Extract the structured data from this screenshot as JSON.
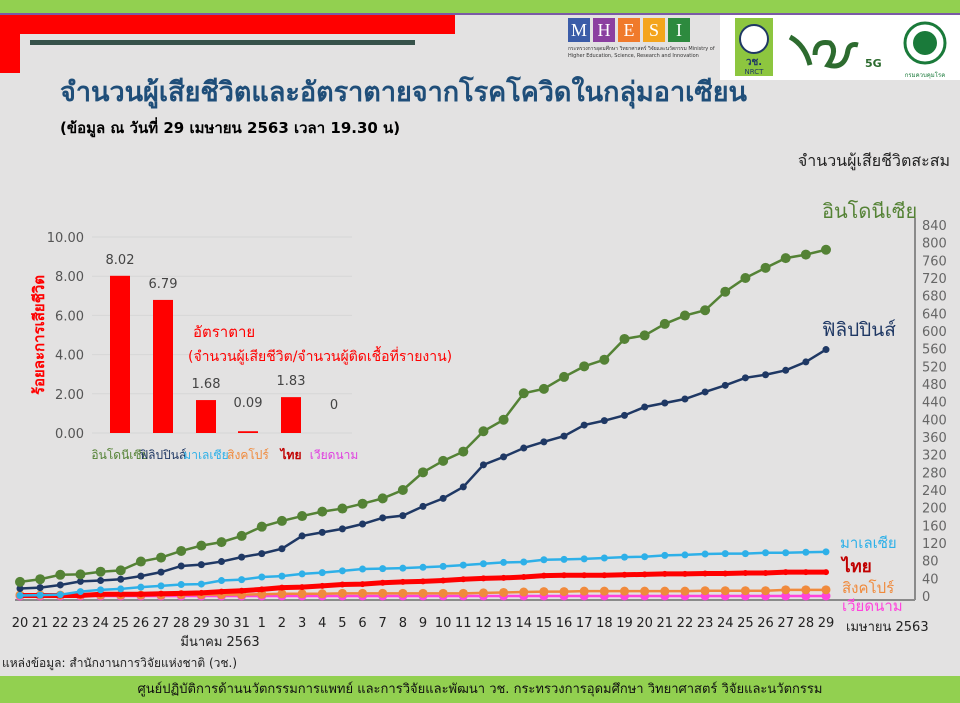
{
  "header": {
    "title": "จำนวนผู้เสียชีวิตและอัตราตายจากโรคโควิดในกลุ่มอาเซียน",
    "subtitle": "(ข้อมูล ณ วันที่ 29 เมษายน 2563 เวลา 19.30 น)",
    "logos": {
      "mhesi_letters": [
        "M",
        "H",
        "E",
        "S",
        "I"
      ],
      "mhesi_colors": [
        "#3b5ca8",
        "#8b3fa0",
        "#f07a2b",
        "#f4a51d",
        "#2d8a3e"
      ],
      "mhesi_caption": "กระทรวงการอุดมศึกษา วิทยาศาสตร์ วิจัยและนวัตกรรม Ministry of Higher Education, Science, Research and Innovation",
      "nrct": "วช. NRCT",
      "fiveg": "5G",
      "ddc": "กรมควบคุมโรค"
    }
  },
  "source": "แหล่งข้อมูล: สำนักงานการวิจัยแห่งชาติ (วช.)",
  "footer": "ศูนย์ปฏิบัติการด้านนวัตกรรมการแพทย์ และการวิจัยและพัฒนา  วช.   กระทรวงการอุดมศึกษา วิทยาศาสตร์ วิจัยและนวัตกรรม",
  "chart_data": [
    {
      "type": "bar",
      "title": "อัตราตาย",
      "subtitle": "(จำนวนผู้เสียชีวิต/จำนวนผู้ติดเชื้อที่รายงาน)",
      "ylabel": "ร้อยละการเสียชีวิต",
      "ylim": [
        0,
        10
      ],
      "yticks": [
        "0.00",
        "2.00",
        "4.00",
        "6.00",
        "8.00",
        "10.00"
      ],
      "categories": [
        "อินโดนีเซีย",
        "ฟิลิปปินส์",
        "มาเลเซีย",
        "สิงคโปร์",
        "ไทย",
        "เวียดนาม"
      ],
      "category_colors": [
        "#548235",
        "#1f3864",
        "#2eb0e8",
        "#f08a3c",
        "#c00000",
        "#e040e0"
      ],
      "values": [
        8.02,
        6.79,
        1.68,
        0.09,
        1.83,
        0
      ],
      "labels": [
        "8.02",
        "6.79",
        "1.68",
        "0.09",
        "1.83",
        "0"
      ],
      "bar_color": "#ff0000",
      "grid": true
    },
    {
      "type": "line",
      "ylabel": "จำนวนผู้เสียชีวิตสะสม",
      "ylim": [
        0,
        840
      ],
      "yticks": [
        "0",
        "40",
        "80",
        "120",
        "160",
        "200",
        "240",
        "280",
        "320",
        "360",
        "400",
        "440",
        "480",
        "520",
        "560",
        "600",
        "640",
        "680",
        "720",
        "760",
        "800",
        "840"
      ],
      "x": [
        "20",
        "21",
        "22",
        "23",
        "24",
        "25",
        "26",
        "27",
        "28",
        "29",
        "30",
        "31",
        "1",
        "2",
        "3",
        "4",
        "5",
        "6",
        "7",
        "8",
        "9",
        "10",
        "11",
        "12",
        "13",
        "14",
        "15",
        "16",
        "17",
        "18",
        "19",
        "20",
        "21",
        "22",
        "23",
        "24",
        "25",
        "26",
        "27",
        "28",
        "29"
      ],
      "month_labels": [
        "มีนาคม 2563",
        "เมษายน 2563"
      ],
      "series": [
        {
          "name": "อินโดนีเซีย",
          "color": "#548235",
          "values": [
            32,
            38,
            48,
            49,
            55,
            58,
            78,
            87,
            102,
            114,
            122,
            136,
            157,
            170,
            181,
            191,
            198,
            209,
            221,
            240,
            280,
            306,
            327,
            373,
            399,
            459,
            469,
            496,
            520,
            535,
            582,
            590,
            616,
            635,
            647,
            689,
            720,
            743,
            765,
            773,
            784
          ]
        },
        {
          "name": "ฟิลิปปินส์",
          "color": "#1f3864",
          "values": [
            17,
            19,
            25,
            33,
            35,
            38,
            45,
            54,
            68,
            71,
            78,
            88,
            96,
            107,
            136,
            144,
            152,
            163,
            177,
            182,
            203,
            221,
            247,
            297,
            315,
            335,
            349,
            362,
            387,
            397,
            409,
            428,
            437,
            446,
            462,
            477,
            494,
            501,
            511,
            530,
            558
          ]
        },
        {
          "name": "มาเลเซีย",
          "color": "#2eb0e8",
          "values": [
            1,
            2,
            3,
            10,
            14,
            16,
            20,
            23,
            26,
            27,
            35,
            37,
            43,
            45,
            50,
            53,
            57,
            61,
            62,
            63,
            65,
            67,
            70,
            73,
            76,
            77,
            82,
            83,
            84,
            86,
            88,
            89,
            92,
            93,
            95,
            96,
            96,
            98,
            98,
            99,
            100
          ]
        },
        {
          "name": "ไทย",
          "color": "#c00000",
          "line_color": "#ff0000",
          "values": [
            1,
            1,
            1,
            1,
            4,
            4,
            4,
            5,
            6,
            7,
            10,
            12,
            15,
            19,
            20,
            23,
            26,
            27,
            30,
            32,
            33,
            35,
            38,
            40,
            41,
            43,
            46,
            47,
            47,
            47,
            48,
            49,
            50,
            50,
            51,
            51,
            52,
            52,
            54,
            54,
            54
          ]
        },
        {
          "name": "สิงคโปร์",
          "color": "#f08a3c",
          "values": [
            2,
            2,
            2,
            2,
            2,
            2,
            2,
            2,
            3,
            3,
            3,
            3,
            4,
            5,
            5,
            5,
            6,
            6,
            6,
            6,
            6,
            6,
            6,
            7,
            8,
            9,
            10,
            10,
            11,
            11,
            11,
            11,
            11,
            11,
            12,
            12,
            12,
            12,
            14,
            14,
            14
          ]
        },
        {
          "name": "เวียดนาม",
          "color": "#ff44dd",
          "values": [
            0,
            0,
            0,
            0,
            0,
            0,
            0,
            0,
            0,
            0,
            0,
            0,
            0,
            0,
            0,
            0,
            0,
            0,
            0,
            0,
            0,
            0,
            0,
            0,
            0,
            0,
            0,
            0,
            0,
            0,
            0,
            0,
            0,
            0,
            0,
            0,
            0,
            0,
            0,
            0,
            0
          ]
        }
      ],
      "grid": false,
      "legend": "right-end labels"
    }
  ]
}
